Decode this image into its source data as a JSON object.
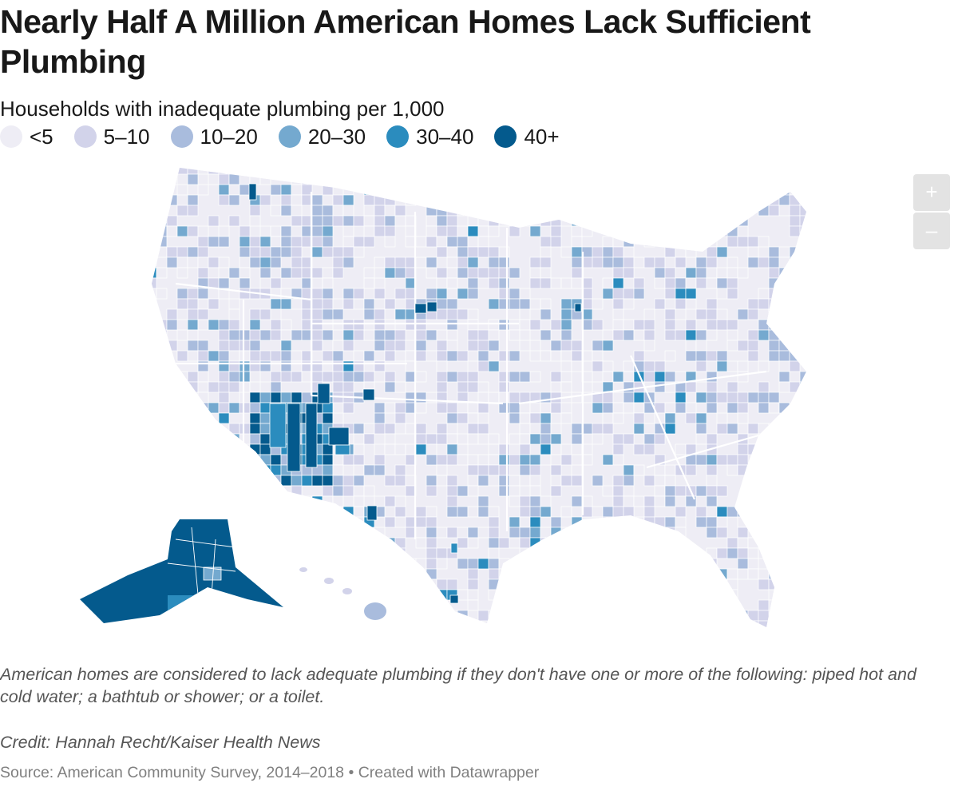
{
  "header": {
    "title": "Nearly Half A Million American Homes Lack Sufficient Plumbing",
    "subtitle": "Households with inadequate plumbing per 1,000"
  },
  "legend": {
    "items": [
      {
        "label": "<5",
        "color": "#eeedf5"
      },
      {
        "label": "5–10",
        "color": "#d2d3ea"
      },
      {
        "label": "10–20",
        "color": "#a9bcdd"
      },
      {
        "label": "20–30",
        "color": "#74a9cf"
      },
      {
        "label": "30–40",
        "color": "#2b8cbe"
      },
      {
        "label": "40+",
        "color": "#045a8d"
      }
    ]
  },
  "zoom": {
    "in_label": "+",
    "out_label": "–"
  },
  "footer": {
    "note": "American homes are considered to lack adequate plumbing if they don't have one or more of the following: piped hot and cold water; a bathtub or shower; or a toilet.",
    "credit": "Credit: Hannah Recht/Kaiser Health News",
    "source": "Source: American Community Survey, 2014–2018 • Created with Datawrapper"
  }
}
